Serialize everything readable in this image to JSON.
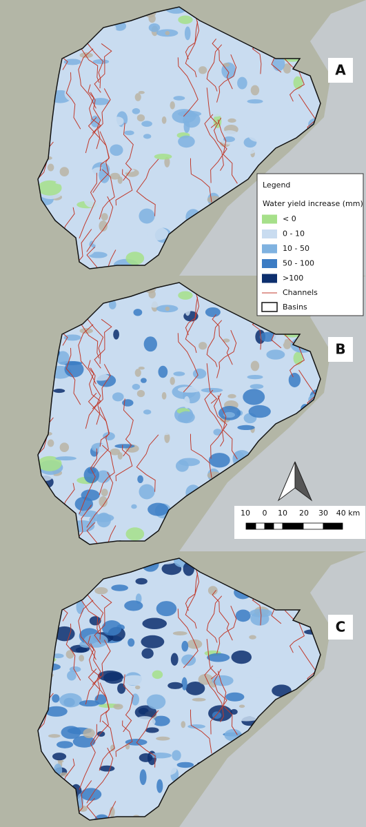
{
  "panels": [
    {
      "label": "A"
    },
    {
      "label": "B"
    },
    {
      "label": "C"
    }
  ],
  "legend": {
    "title": "Legend",
    "subtitle": "Water yield increase (mm)",
    "items": [
      {
        "label": "< 0",
        "color": "#a6e08a"
      },
      {
        "label": "0 - 10",
        "color": "#c9dcf0"
      },
      {
        "label": "10 - 50",
        "color": "#7fb2e0"
      },
      {
        "label": "50 - 100",
        "color": "#3b7cc4"
      },
      {
        "label": ">100",
        "color": "#0d2f6e"
      }
    ],
    "channels": {
      "label": "Channels",
      "color": "#c0392b"
    },
    "basins": {
      "label": "Basins",
      "color": "#111111"
    }
  },
  "scale_bar": {
    "labels": [
      "10",
      "0",
      "10",
      "20",
      "30",
      "40 km"
    ]
  }
}
